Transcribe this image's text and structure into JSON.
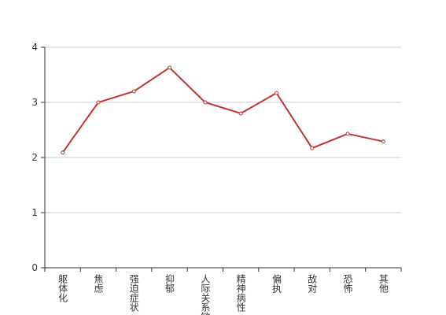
{
  "chart_data": {
    "type": "line",
    "categories": [
      "躯体化",
      "焦虑",
      "强迫症状",
      "抑郁",
      "人际关系敏感",
      "精神病性",
      "偏执",
      "敌对",
      "恐怖",
      "其他"
    ],
    "series": [
      {
        "color": "#c23531",
        "values": [
          2.09,
          3.0,
          3.2,
          3.63,
          3.0,
          2.8,
          3.17,
          2.17,
          2.43,
          2.29
        ]
      }
    ],
    "ylim": [
      0,
      4
    ],
    "yticks": [
      0,
      1,
      2,
      3,
      4
    ],
    "grid": true
  }
}
